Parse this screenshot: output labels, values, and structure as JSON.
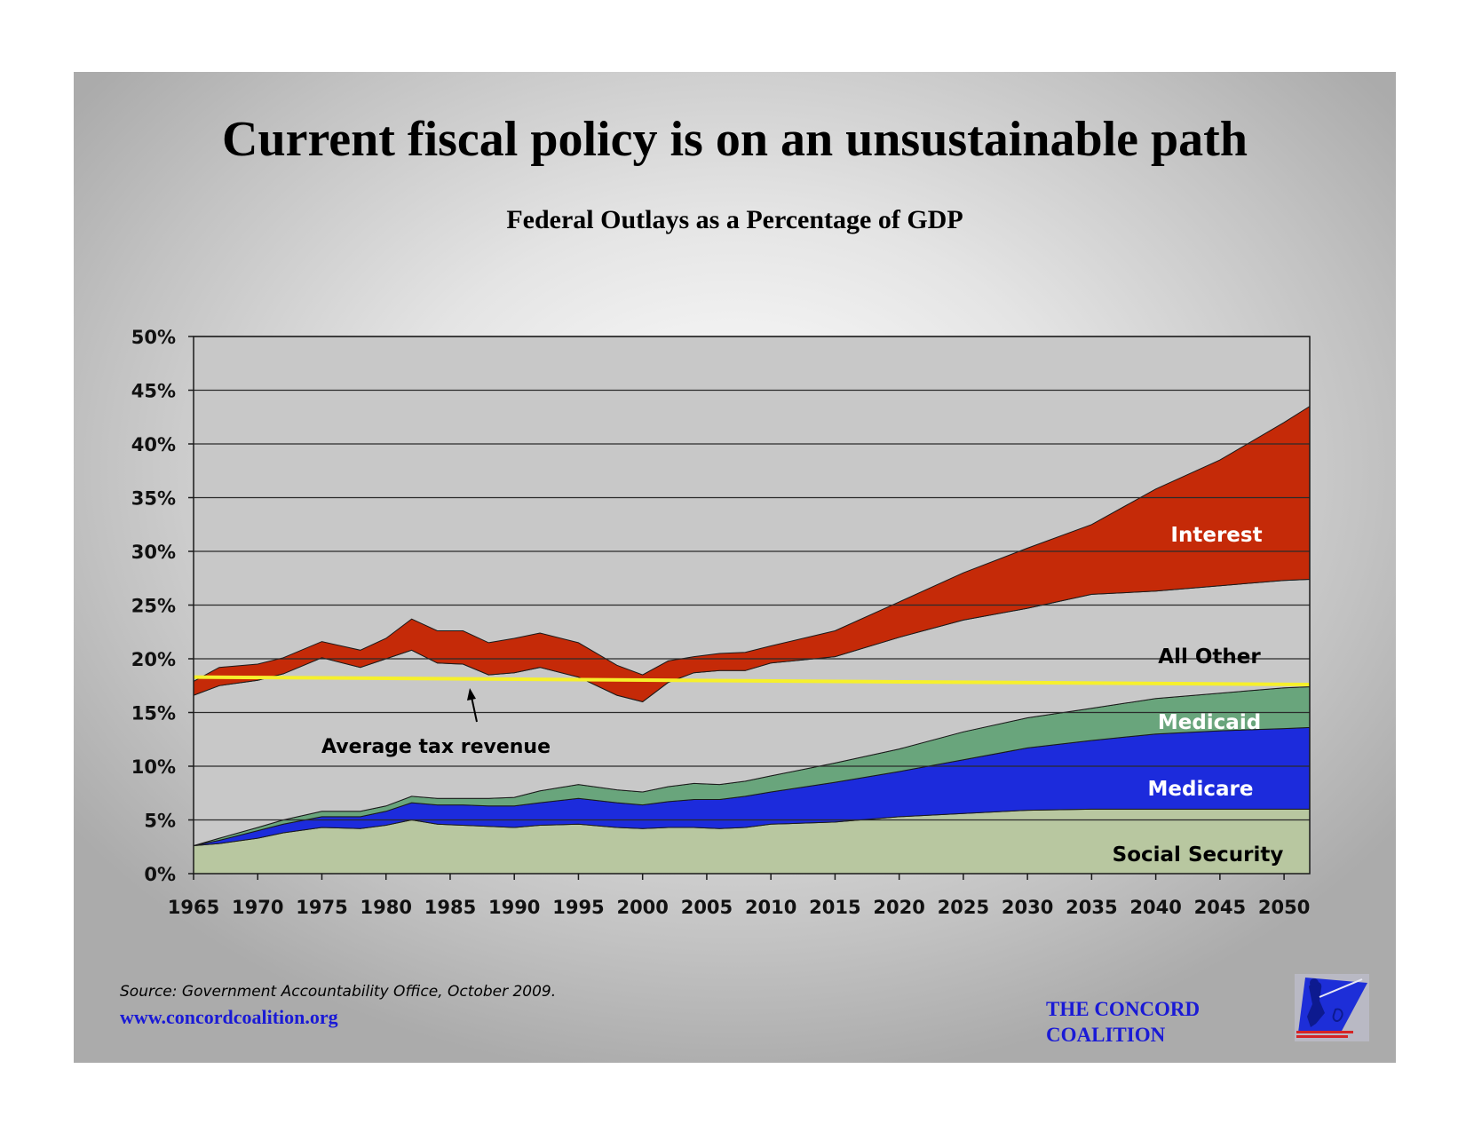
{
  "title": "Current fiscal policy is on an unsustainable path",
  "subtitle": "Federal Outlays as a Percentage of GDP",
  "source": "Source: Government Accountability Office, October 2009.",
  "website": "www.concordcoalition.org",
  "organization": {
    "line1": "THE CONCORD",
    "line2": "COALITION"
  },
  "logo_icon": "minuteman-logo-icon",
  "colors": {
    "social_security": "#b8c7a0",
    "medicare": "#1c2bdc",
    "medicaid": "#69a57c",
    "all_other": "#c8c8c8",
    "interest": "#c52a08",
    "tax_line": "#f6f02c",
    "org_blue": "#1a1ad6"
  },
  "chart_data": {
    "type": "area",
    "stacked": true,
    "title": "Federal Outlays as a Percentage of GDP",
    "xlim": [
      1965,
      2052
    ],
    "ylim": [
      0,
      50
    ],
    "y_tick_labels": [
      "0%",
      "5%",
      "10%",
      "15%",
      "20%",
      "25%",
      "30%",
      "35%",
      "40%",
      "45%",
      "50%"
    ],
    "x_tick_labels": [
      "1965",
      "1970",
      "1975",
      "1980",
      "1985",
      "1990",
      "1995",
      "2000",
      "2005",
      "2010",
      "2015",
      "2020",
      "2025",
      "2030",
      "2035",
      "2040",
      "2045",
      "2050"
    ],
    "grid": true,
    "x": [
      1965,
      1967,
      1970,
      1972,
      1975,
      1978,
      1980,
      1982,
      1984,
      1986,
      1988,
      1990,
      1992,
      1995,
      1998,
      2000,
      2002,
      2004,
      2006,
      2008,
      2010,
      2015,
      2020,
      2025,
      2030,
      2035,
      2040,
      2045,
      2050,
      2052
    ],
    "series": [
      {
        "name": "Social Security",
        "color": "#b8c7a0",
        "values": [
          2.6,
          2.8,
          3.3,
          3.8,
          4.3,
          4.2,
          4.5,
          5.0,
          4.6,
          4.5,
          4.4,
          4.3,
          4.5,
          4.6,
          4.3,
          4.2,
          4.3,
          4.3,
          4.2,
          4.3,
          4.6,
          4.8,
          5.3,
          5.6,
          5.9,
          6.0,
          6.0,
          6.0,
          6.0,
          6.0
        ]
      },
      {
        "name": "Medicare",
        "color": "#1c2bdc",
        "values": [
          0.0,
          0.3,
          0.7,
          0.8,
          1.0,
          1.1,
          1.3,
          1.6,
          1.8,
          1.9,
          1.9,
          2.0,
          2.1,
          2.4,
          2.3,
          2.2,
          2.4,
          2.6,
          2.7,
          2.9,
          3.0,
          3.7,
          4.2,
          5.0,
          5.8,
          6.4,
          7.0,
          7.3,
          7.5,
          7.6
        ]
      },
      {
        "name": "Medicaid",
        "color": "#69a57c",
        "values": [
          0.0,
          0.2,
          0.3,
          0.4,
          0.5,
          0.5,
          0.5,
          0.6,
          0.6,
          0.6,
          0.7,
          0.8,
          1.1,
          1.3,
          1.2,
          1.2,
          1.4,
          1.5,
          1.4,
          1.4,
          1.5,
          1.8,
          2.1,
          2.6,
          2.8,
          3.0,
          3.3,
          3.5,
          3.8,
          3.8
        ]
      },
      {
        "name": "All Other",
        "color": "#c8c8c8",
        "values": [
          14.0,
          14.2,
          13.7,
          13.6,
          14.3,
          13.4,
          13.7,
          13.6,
          12.6,
          12.5,
          11.5,
          11.6,
          11.5,
          10.0,
          8.8,
          8.4,
          9.7,
          10.3,
          10.6,
          10.3,
          10.5,
          9.9,
          10.4,
          10.4,
          10.2,
          10.6,
          10.0,
          10.0,
          10.0,
          10.0
        ]
      },
      {
        "name": "Interest",
        "color": "#c52a08",
        "values": [
          1.3,
          1.7,
          1.5,
          1.5,
          1.5,
          1.6,
          1.9,
          2.9,
          3.0,
          3.1,
          3.0,
          3.2,
          3.2,
          3.2,
          2.8,
          2.5,
          2.0,
          1.5,
          1.6,
          1.7,
          1.6,
          2.4,
          3.3,
          4.4,
          5.6,
          6.5,
          9.5,
          11.7,
          14.7,
          16.1
        ]
      }
    ],
    "reference_line": {
      "name": "Average tax revenue",
      "color": "#f6f02c",
      "x": [
        1965,
        2052
      ],
      "y": [
        18.3,
        17.6
      ]
    },
    "annotations": [
      {
        "text": "Average tax revenue",
        "x": 1990,
        "y": 11.8
      }
    ]
  }
}
